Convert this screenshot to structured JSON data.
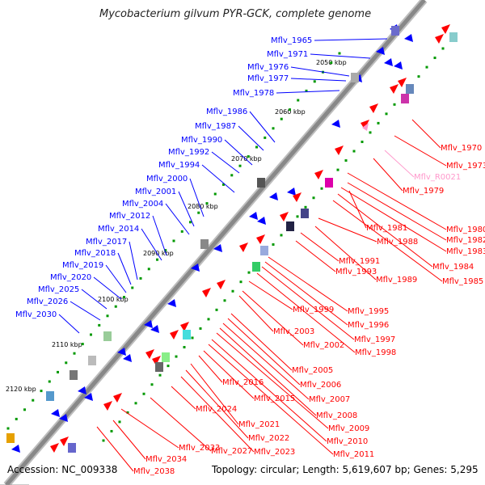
{
  "title": "Mycobacterium gilvum PYR-GCK, complete genome",
  "footer": {
    "accession": "Accession: NC_009338",
    "topology": "Topology: circular; Length: 5,619,607 bp; Genes: 5,295"
  },
  "ticks": [
    "2050 kbp",
    "2060 kbp",
    "2070 kbp",
    "2080 kbp",
    "2090 kbp",
    "2100 kbp",
    "2110 kbp",
    "2120 kbp"
  ],
  "blue_labels": [
    "Mflv_1965",
    "Mflv_1971",
    "Mflv_1976",
    "Mflv_1977",
    "Mflv_1978",
    "Mflv_1986",
    "Mflv_1987",
    "Mflv_1990",
    "Mflv_1992",
    "Mflv_1994",
    "Mflv_2000",
    "Mflv_2001",
    "Mflv_2004",
    "Mflv_2012",
    "Mflv_2014",
    "Mflv_2017",
    "Mflv_2018",
    "Mflv_2019",
    "Mflv_2020",
    "Mflv_2025",
    "Mflv_2026",
    "Mflv_2030"
  ],
  "red_labels": [
    "Mflv_1970",
    "Mflv_1973",
    "Mflv_R0021",
    "Mflv_1979",
    "Mflv_1980",
    "Mflv_1981",
    "Mflv_1982",
    "Mflv_1983",
    "Mflv_1984",
    "Mflv_1985",
    "Mflv_1988",
    "Mflv_1989",
    "Mflv_1991",
    "Mflv_1993",
    "Mflv_1995",
    "Mflv_1996",
    "Mflv_1997",
    "Mflv_1998",
    "Mflv_1999",
    "Mflv_2002",
    "Mflv_2003",
    "Mflv_2005",
    "Mflv_2006",
    "Mflv_2007",
    "Mflv_2008",
    "Mflv_2009",
    "Mflv_2010",
    "Mflv_2011",
    "Mflv_2015",
    "Mflv_2016",
    "Mflv_2021",
    "Mflv_2022",
    "Mflv_2023",
    "Mflv_2024",
    "Mflv_2027",
    "Mflv_2033",
    "Mflv_2034",
    "Mflv_2038"
  ],
  "colors": {
    "forward": "#0000ff",
    "reverse": "#ff0000",
    "rna": "#ff99cc",
    "backbone": "#888888",
    "tick_dot": "#009900"
  }
}
